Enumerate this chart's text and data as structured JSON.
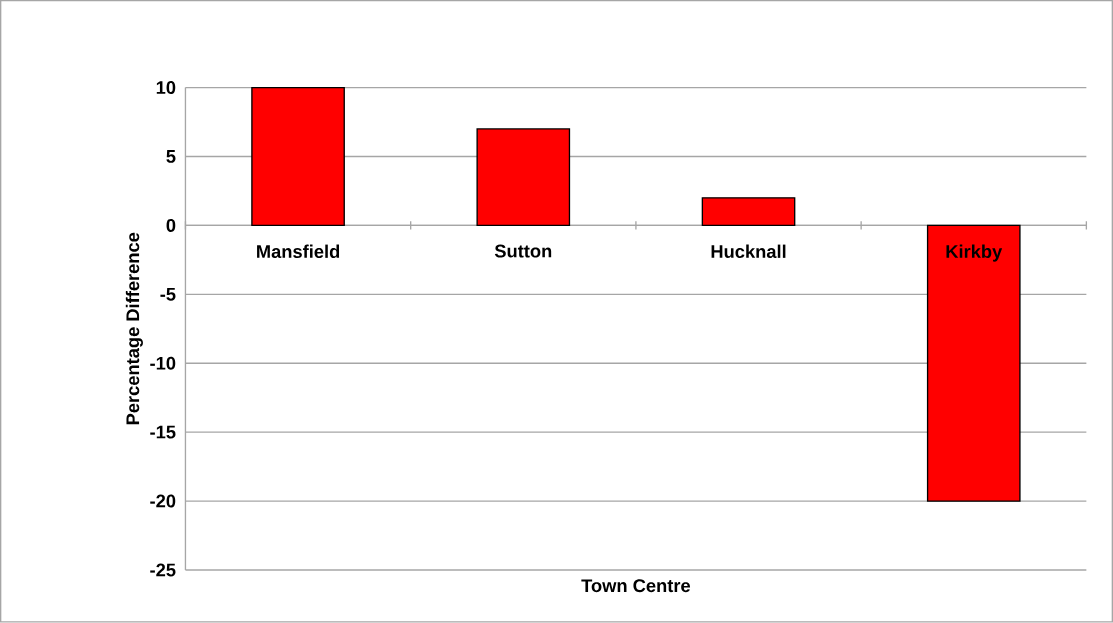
{
  "chart_data": {
    "type": "bar",
    "xlabel": "Town Centre",
    "ylabel": "Percentage Difference",
    "categories": [
      "Mansfield",
      "Sutton",
      "Hucknall",
      "Kirkby"
    ],
    "values": [
      10,
      7,
      2,
      -20
    ],
    "color": "#ff0000",
    "ylim": [
      -25,
      10
    ],
    "yticks": [
      -25,
      -20,
      -15,
      -10,
      -5,
      0,
      5,
      10
    ],
    "grid": "y"
  }
}
